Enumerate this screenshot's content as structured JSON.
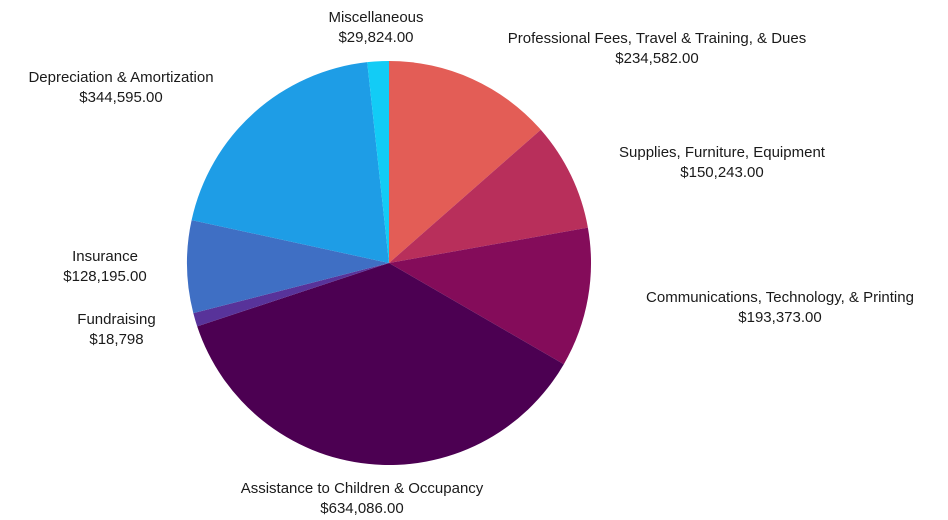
{
  "chart_data": {
    "type": "pie",
    "slices": [
      {
        "label": "Professional Fees, Travel &  Training, & Dues",
        "display": "$234,582.00",
        "value": 234582.0,
        "color": "#E35D56"
      },
      {
        "label": "Supplies, Furniture, Equipment",
        "display": "$150,243.00",
        "value": 150243.0,
        "color": "#B82F5B"
      },
      {
        "label": "Communications, Technology, & Printing",
        "display": "$193,373.00",
        "value": 193373.0,
        "color": "#840C5A"
      },
      {
        "label": "Assistance to Children & Occupancy",
        "display": "$634,086.00",
        "value": 634086.0,
        "color": "#4C0052"
      },
      {
        "label": "Fundraising",
        "display": "$18,798",
        "value": 18798,
        "color": "#58339A"
      },
      {
        "label": "Insurance",
        "display": "$128,195.00",
        "value": 128195.0,
        "color": "#3F6FC4"
      },
      {
        "label": "Depreciation & Amortization",
        "display": "$344,595.00",
        "value": 344595.0,
        "color": "#1E9DE6"
      },
      {
        "label": "Miscellaneous",
        "display": "$29,824.00",
        "value": 29824.0,
        "color": "#12CCF6"
      }
    ]
  }
}
